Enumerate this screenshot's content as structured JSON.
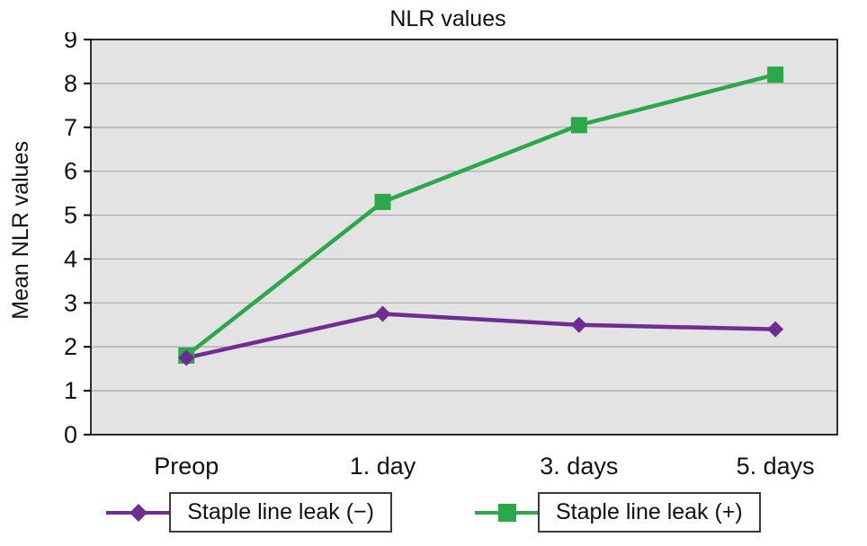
{
  "chart_data": {
    "type": "line",
    "title": "NLR values",
    "xlabel": "",
    "ylabel": "Mean NLR values",
    "categories": [
      "Preop",
      "1. day",
      "3. days",
      "5. days"
    ],
    "series": [
      {
        "name": "Staple line leak (−)",
        "color": "#6f2c91",
        "marker": "diamond",
        "values": [
          1.75,
          2.75,
          2.5,
          2.4
        ]
      },
      {
        "name": "Staple line leak (+)",
        "color": "#2aa84a",
        "marker": "square",
        "values": [
          1.8,
          5.3,
          7.05,
          8.2
        ]
      }
    ],
    "ylim": [
      0,
      9
    ],
    "y_tick_step": 1,
    "grid": true,
    "plot_bg": "#e3e3e3",
    "grid_color": "#a8a8a8",
    "axis_color": "#000000",
    "legend_position": "bottom"
  }
}
